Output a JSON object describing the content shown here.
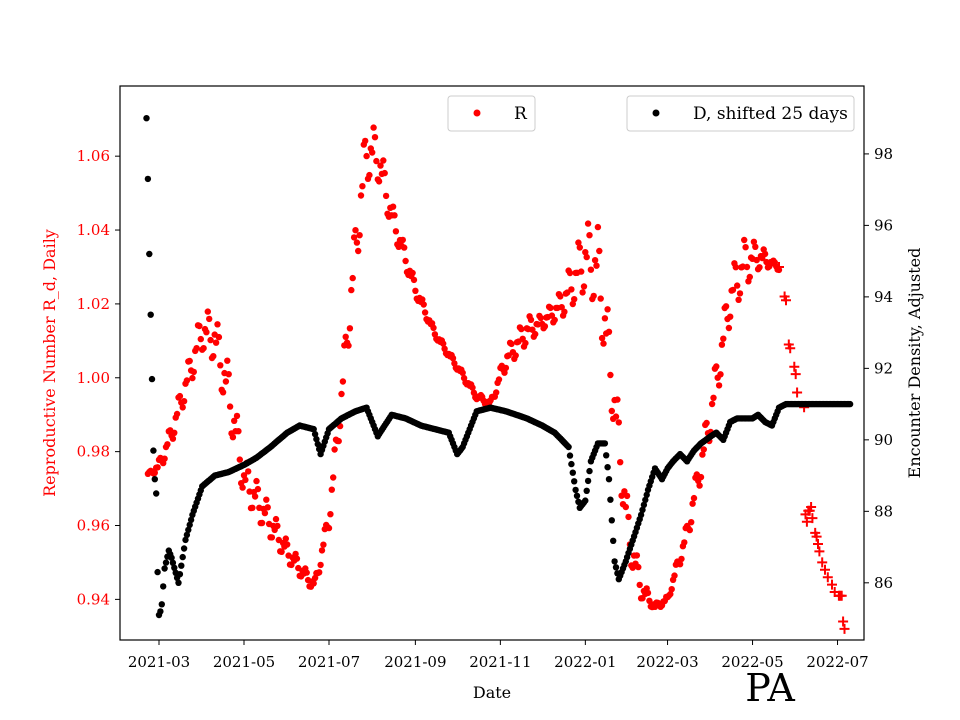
{
  "chart_data": {
    "type": "scatter",
    "title": "",
    "xlabel": "Date",
    "ylabel_left": "Reproductive Number R_d, Daily",
    "ylabel_right": "Encounter Density, Adjusted",
    "annotation": "PA",
    "x_range": [
      "2021-02-01",
      "2022-07-20"
    ],
    "xticks": [
      "2021-03-01",
      "2021-05-01",
      "2021-07-01",
      "2021-09-01",
      "2021-11-01",
      "2022-01-01",
      "2022-03-01",
      "2022-05-01",
      "2022-07-01"
    ],
    "xtick_labels": [
      "2021-03",
      "2021-05",
      "2021-07",
      "2021-09",
      "2021-11",
      "2022-01",
      "2022-03",
      "2022-05",
      "2022-07"
    ],
    "ylim_left": [
      0.929,
      1.079
    ],
    "yticks_left": [
      0.94,
      0.96,
      0.98,
      1.0,
      1.02,
      1.04,
      1.06
    ],
    "ytick_labels_left": [
      "0.94",
      "0.96",
      "0.98",
      "1.00",
      "1.02",
      "1.04",
      "1.06"
    ],
    "ylim_right": [
      84.4,
      99.9
    ],
    "yticks_right": [
      86,
      88,
      90,
      92,
      94,
      96,
      98
    ],
    "ytick_labels_right": [
      "86",
      "88",
      "90",
      "92",
      "94",
      "96",
      "98"
    ],
    "grid": false,
    "colors": {
      "R": "#ff0000",
      "D": "#000000",
      "left_axis_text": "#ff0000",
      "right_axis_text": "#000000"
    },
    "legends": [
      {
        "label": "R",
        "color": "#ff0000",
        "placement": "top-center"
      },
      {
        "label": "D, shifted 25 days",
        "color": "#000000",
        "placement": "top-right"
      }
    ],
    "series": [
      {
        "name": "R",
        "axis": "left",
        "marker": "dot",
        "oscillation": "weekly",
        "x": [
          "2021-02-21",
          "2021-03-01",
          "2021-03-10",
          "2021-03-20",
          "2021-04-01",
          "2021-04-10",
          "2021-04-20",
          "2021-05-01",
          "2021-05-15",
          "2021-06-01",
          "2021-06-15",
          "2021-06-21",
          "2021-07-01",
          "2021-07-10",
          "2021-07-20",
          "2021-07-28",
          "2021-08-05",
          "2021-08-15",
          "2021-09-01",
          "2021-09-15",
          "2021-10-01",
          "2021-10-15",
          "2021-10-25",
          "2021-11-05",
          "2021-11-20",
          "2021-12-01",
          "2021-12-15",
          "2022-01-01",
          "2022-01-10",
          "2022-01-20",
          "2022-02-01",
          "2022-02-10",
          "2022-02-20",
          "2022-03-01",
          "2022-03-15",
          "2022-04-01",
          "2022-04-15",
          "2022-04-25",
          "2022-05-05",
          "2022-05-15",
          "2022-05-20"
        ],
        "y": [
          0.974,
          0.976,
          0.985,
          0.998,
          1.013,
          1.011,
          0.996,
          0.973,
          0.964,
          0.953,
          0.946,
          0.944,
          0.962,
          0.995,
          1.035,
          1.062,
          1.06,
          1.044,
          1.024,
          1.012,
          1.003,
          0.995,
          0.993,
          1.005,
          1.013,
          1.015,
          1.02,
          1.033,
          1.03,
          1.0,
          0.958,
          0.943,
          0.938,
          0.94,
          0.958,
          0.99,
          1.022,
          1.031,
          1.033,
          1.031,
          1.03
        ],
        "amplitude": [
          0.0,
          0.002,
          0.003,
          0.004,
          0.006,
          0.007,
          0.008,
          0.006,
          0.005,
          0.003,
          0.002,
          0.002,
          0.003,
          0.006,
          0.008,
          0.009,
          0.007,
          0.004,
          0.002,
          0.001,
          0.001,
          0.001,
          0.001,
          0.003,
          0.004,
          0.002,
          0.004,
          0.01,
          0.012,
          0.01,
          0.007,
          0.003,
          0.001,
          0.001,
          0.003,
          0.006,
          0.007,
          0.007,
          0.004,
          0.001,
          0.001
        ]
      },
      {
        "name": "R",
        "axis": "left",
        "marker": "plus",
        "x": [
          "2022-05-20",
          "2022-05-24",
          "2022-05-25",
          "2022-05-27",
          "2022-05-28",
          "2022-05-31",
          "2022-06-01",
          "2022-06-02",
          "2022-06-07",
          "2022-06-08",
          "2022-06-09",
          "2022-06-10",
          "2022-06-11",
          "2022-06-12",
          "2022-06-13",
          "2022-06-15",
          "2022-06-16",
          "2022-06-17",
          "2022-06-18",
          "2022-06-20",
          "2022-06-22",
          "2022-06-24",
          "2022-06-27",
          "2022-06-29",
          "2022-07-02",
          "2022-07-03",
          "2022-07-04",
          "2022-07-05",
          "2022-07-06"
        ],
        "y": [
          1.03,
          1.022,
          1.021,
          1.009,
          1.008,
          1.003,
          1.001,
          0.996,
          0.992,
          0.963,
          0.961,
          0.964,
          0.964,
          0.965,
          0.962,
          0.958,
          0.957,
          0.955,
          0.953,
          0.95,
          0.948,
          0.946,
          0.944,
          0.942,
          0.941,
          0.941,
          0.941,
          0.934,
          0.932
        ]
      },
      {
        "name": "D, shifted 25 days",
        "axis": "right",
        "marker": "dot",
        "x": [
          "2021-02-20",
          "2021-02-21",
          "2021-02-22",
          "2021-02-23",
          "2021-02-24",
          "2021-02-25",
          "2021-02-26",
          "2021-02-27",
          "2021-02-28",
          "2021-03-01",
          "2021-03-02",
          "2021-03-03",
          "2021-03-05",
          "2021-03-08",
          "2021-03-10",
          "2021-03-15",
          "2021-03-20",
          "2021-03-25",
          "2021-04-01",
          "2021-04-10",
          "2021-04-20",
          "2021-05-01",
          "2021-05-10",
          "2021-05-20",
          "2021-06-01",
          "2021-06-10",
          "2021-06-20",
          "2021-06-25",
          "2021-07-01",
          "2021-07-10",
          "2021-07-20",
          "2021-07-28",
          "2021-08-05",
          "2021-08-15",
          "2021-08-25",
          "2021-09-05",
          "2021-09-15",
          "2021-09-25",
          "2021-10-01",
          "2021-10-05",
          "2021-10-15",
          "2021-10-25",
          "2021-11-05",
          "2021-11-20",
          "2021-12-01",
          "2021-12-10",
          "2021-12-20",
          "2021-12-25",
          "2021-12-28",
          "2022-01-01",
          "2022-01-05",
          "2022-01-10",
          "2022-01-12",
          "2022-01-15",
          "2022-01-18",
          "2022-01-22",
          "2022-01-25",
          "2022-01-30",
          "2022-02-05",
          "2022-02-10",
          "2022-02-15",
          "2022-02-20",
          "2022-02-25",
          "2022-03-01",
          "2022-03-05",
          "2022-03-10",
          "2022-03-15",
          "2022-03-20",
          "2022-03-25",
          "2022-04-01",
          "2022-04-05",
          "2022-04-10",
          "2022-04-15",
          "2022-04-20",
          "2022-04-25",
          "2022-05-01",
          "2022-05-05",
          "2022-05-10",
          "2022-05-15",
          "2022-05-20",
          "2022-05-25",
          "2022-06-01",
          "2022-06-10",
          "2022-06-20",
          "2022-07-01",
          "2022-07-10"
        ],
        "y": [
          99.0,
          97.3,
          95.2,
          93.5,
          91.7,
          89.7,
          88.9,
          88.5,
          86.3,
          85.1,
          85.2,
          85.4,
          86.4,
          86.9,
          86.7,
          86.0,
          87.2,
          87.9,
          88.7,
          89.0,
          89.1,
          89.3,
          89.5,
          89.8,
          90.2,
          90.4,
          90.3,
          89.6,
          90.3,
          90.6,
          90.8,
          90.9,
          90.1,
          90.7,
          90.6,
          90.4,
          90.3,
          90.2,
          89.6,
          89.8,
          90.8,
          90.9,
          90.8,
          90.6,
          90.4,
          90.2,
          89.8,
          88.6,
          88.1,
          88.3,
          89.4,
          89.9,
          89.9,
          89.9,
          88.9,
          86.6,
          86.1,
          86.6,
          87.3,
          87.9,
          88.6,
          89.2,
          88.9,
          89.2,
          89.4,
          89.6,
          89.4,
          89.7,
          89.9,
          90.1,
          90.2,
          90.0,
          90.5,
          90.6,
          90.6,
          90.6,
          90.7,
          90.5,
          90.4,
          90.9,
          91.0,
          91.0,
          91.0,
          91.0,
          91.0,
          91.0
        ]
      }
    ]
  }
}
